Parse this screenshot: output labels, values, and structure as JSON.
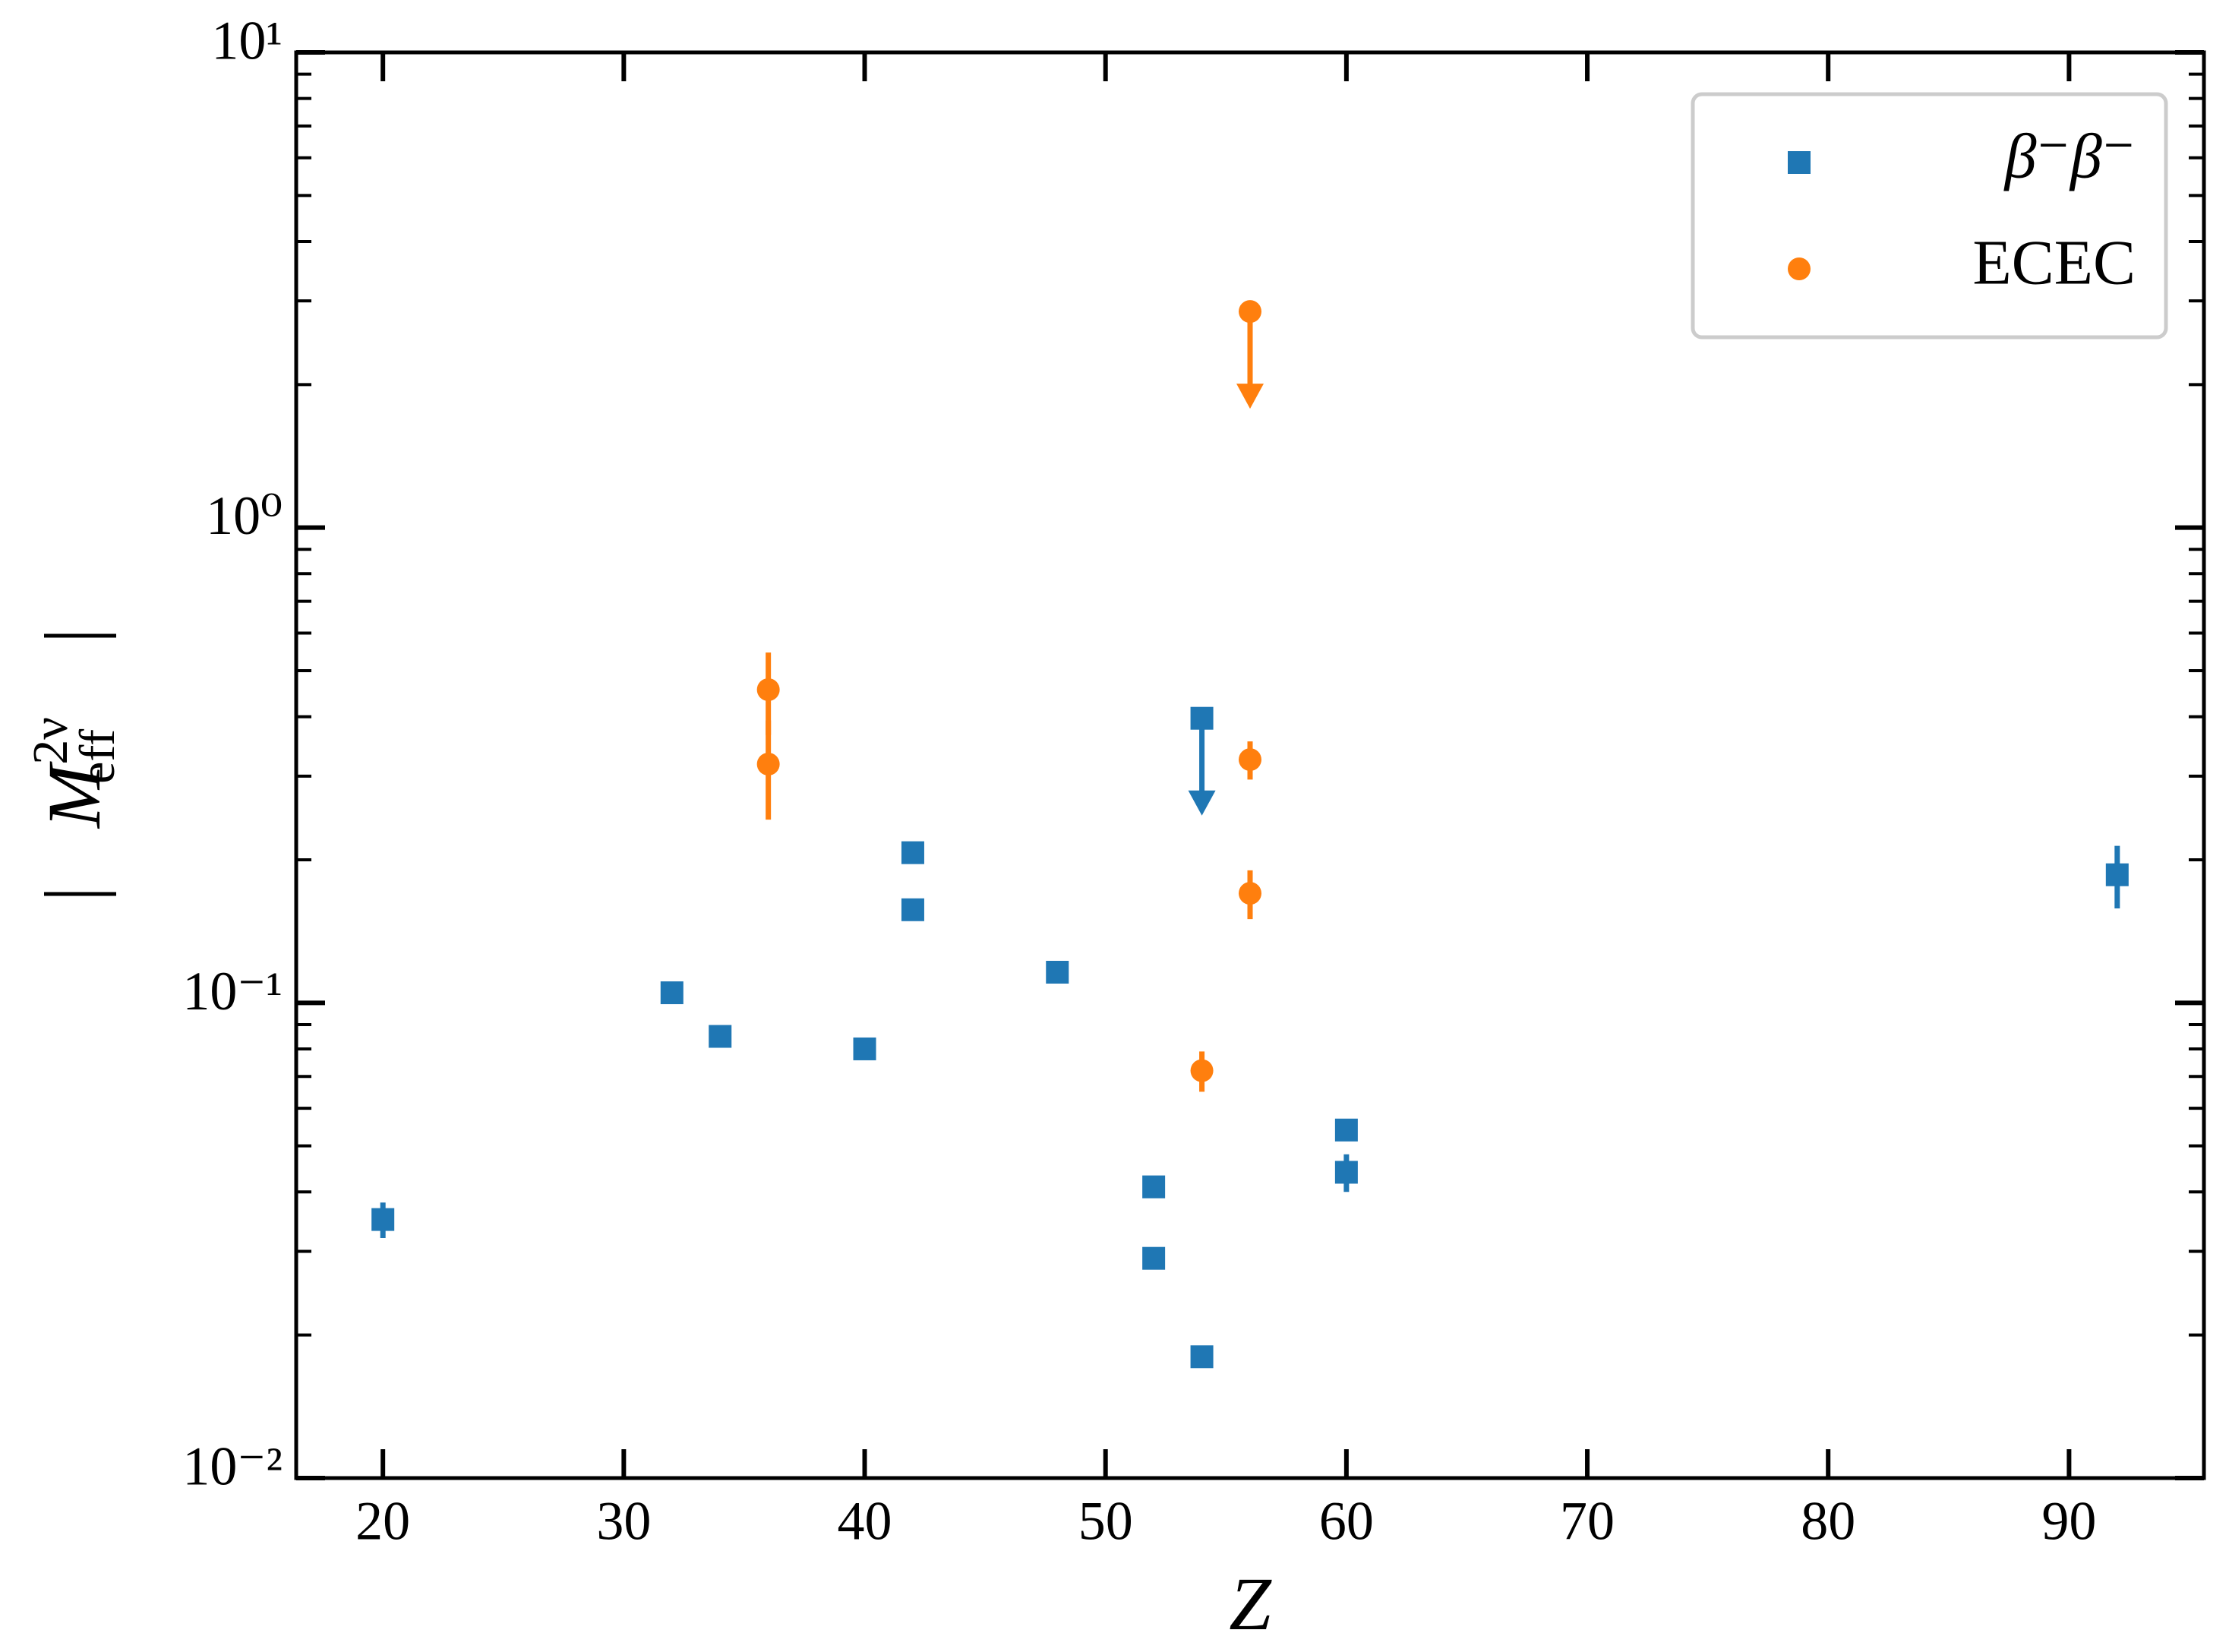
{
  "chart_data": {
    "type": "scatter",
    "xlabel": "Z",
    "ylabel": {
      "main": "M",
      "superscript": "2ν",
      "subscript": "eff"
    },
    "xlim": [
      16.4,
      95.6
    ],
    "xticks": [
      20,
      30,
      40,
      50,
      60,
      70,
      80,
      90
    ],
    "ylim": [
      0.01,
      10
    ],
    "log_y": true,
    "yticks": [
      {
        "value": 0.01,
        "label": "10⁻²"
      },
      {
        "value": 0.1,
        "label": "10⁻¹"
      },
      {
        "value": 1,
        "label": "10⁰"
      },
      {
        "value": 10,
        "label": "10¹"
      }
    ],
    "yminorticks": [
      0.02,
      0.03,
      0.04,
      0.05,
      0.06,
      0.07,
      0.08,
      0.09,
      0.2,
      0.3,
      0.4,
      0.5,
      0.6,
      0.7,
      0.8,
      0.9,
      2,
      3,
      4,
      5,
      6,
      7,
      8,
      9
    ],
    "legend": "upper right",
    "series": [
      {
        "name": "β⁻β⁻",
        "color": "#1f77b4",
        "marker": "square",
        "x": [
          20,
          32,
          34,
          40,
          42,
          42,
          48,
          52,
          52,
          54,
          54,
          60,
          60,
          92
        ],
        "values": [
          0.035,
          0.105,
          0.085,
          0.08,
          0.207,
          0.157,
          0.116,
          0.041,
          0.029,
          0.397,
          0.018,
          0.054,
          0.044,
          0.186
        ],
        "errors": [
          0.003,
          null,
          null,
          null,
          null,
          null,
          null,
          null,
          null,
          null,
          null,
          null,
          0.004,
          0.028
        ],
        "upper_limits": [
          false,
          false,
          false,
          false,
          false,
          false,
          false,
          false,
          false,
          true,
          false,
          false,
          false,
          false
        ]
      },
      {
        "name": "ECEC",
        "color": "#ff7f0e",
        "marker": "circle",
        "x": [
          36,
          36,
          54,
          56,
          56,
          56
        ],
        "values": [
          0.456,
          0.318,
          0.072,
          2.85,
          0.325,
          0.17
        ],
        "errors": [
          0.09,
          0.075,
          0.007,
          null,
          0.03,
          0.02
        ],
        "upper_limits": [
          false,
          false,
          false,
          true,
          false,
          false
        ]
      }
    ]
  }
}
